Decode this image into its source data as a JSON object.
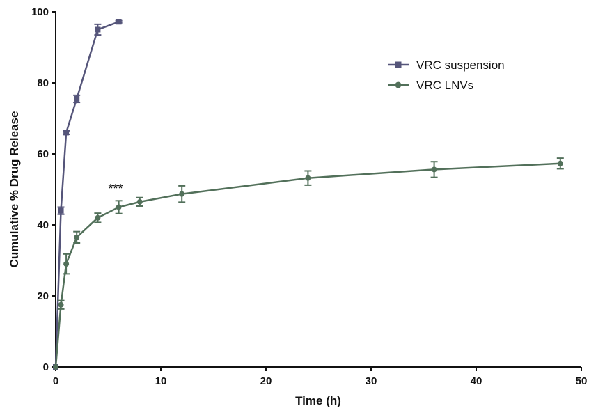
{
  "chart_data": {
    "type": "line",
    "xlabel": "Time (h)",
    "ylabel": "Cumulative % Drug Release",
    "xlim": [
      0,
      50
    ],
    "ylim": [
      0,
      100
    ],
    "xticks": [
      0,
      10,
      20,
      30,
      40,
      50
    ],
    "yticks": [
      0,
      20,
      40,
      60,
      80,
      100
    ],
    "grid": false,
    "legend_position": "top-right",
    "annotations": [
      {
        "text": "***",
        "x": 5.7,
        "y": 50
      }
    ],
    "series": [
      {
        "name": "VRC suspension",
        "color": "#55557a",
        "marker": "square",
        "x": [
          0,
          0.5,
          1,
          2,
          4,
          6
        ],
        "y": [
          0,
          44,
          66,
          75.5,
          95,
          97.2
        ],
        "err": [
          0,
          1.0,
          0.5,
          1.0,
          1.5,
          0.3
        ]
      },
      {
        "name": "VRC LNVs",
        "color": "#52705a",
        "marker": "circle",
        "x": [
          0,
          0.5,
          1,
          2,
          4,
          6,
          8,
          12,
          24,
          36,
          48
        ],
        "y": [
          0,
          17.5,
          29,
          36.5,
          42,
          45,
          46.5,
          48.7,
          53.2,
          55.6,
          57.3
        ],
        "err": [
          0,
          1.2,
          2.8,
          1.6,
          1.3,
          1.8,
          1.2,
          2.3,
          2.0,
          2.2,
          1.5
        ]
      }
    ]
  }
}
